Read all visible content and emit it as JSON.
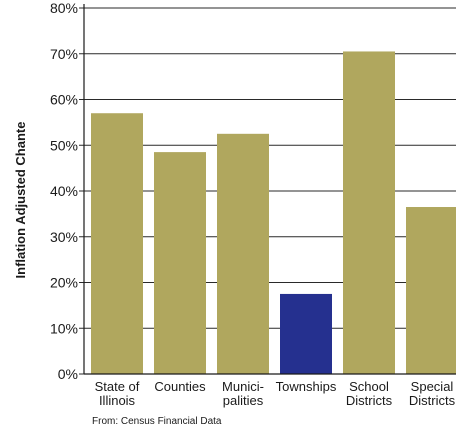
{
  "chart_data": {
    "type": "bar",
    "title": "",
    "xlabel": "",
    "ylabel": "Inflation Adjusted Chante",
    "ylim": [
      0,
      80
    ],
    "yticks": [
      "0%",
      "10%",
      "20%",
      "30%",
      "40%",
      "50%",
      "60%",
      "70%",
      "80%"
    ],
    "grid": true,
    "categories": [
      [
        "State of",
        "Illinois"
      ],
      [
        "Counties"
      ],
      [
        "Munici-",
        "palities"
      ],
      [
        "Townships"
      ],
      [
        "School",
        "Districts"
      ],
      [
        "Special",
        "Districts"
      ]
    ],
    "values": [
      57,
      48.5,
      52.5,
      17.5,
      70.5,
      36.5
    ],
    "colors": [
      "#b0a75e",
      "#b0a75e",
      "#b0a75e",
      "#25308f",
      "#b0a75e",
      "#b0a75e"
    ],
    "source": "From: Census Financial Data"
  }
}
